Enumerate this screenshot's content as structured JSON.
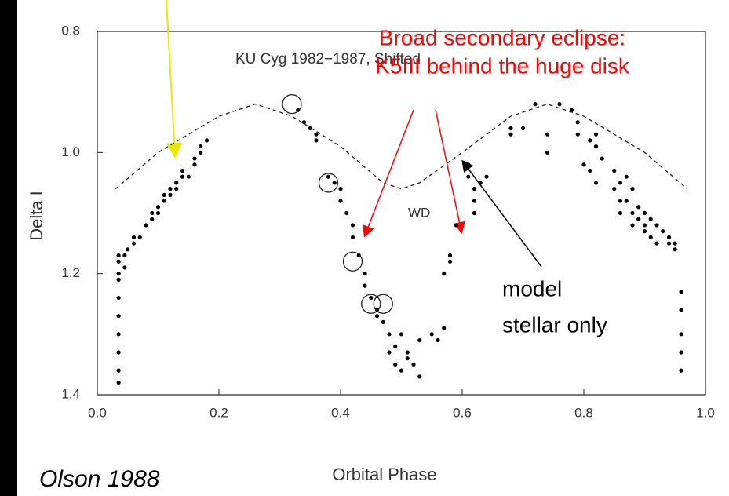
{
  "chart_data": {
    "type": "scatter",
    "title": "KU Cyg 1982−1987, Shifted",
    "x_label": "Orbital Phase",
    "y_label": "Delta  I",
    "source": "Olson 1988",
    "xlim": [
      0,
      1
    ],
    "ylim": [
      1.4,
      0.8
    ],
    "xticks": [
      {
        "value": 0,
        "label": "0.0"
      },
      0.2,
      0.4,
      0.6,
      0.8,
      {
        "value": 1,
        "label": "1.0"
      }
    ],
    "yticks": [
      0.8,
      {
        "value": 1,
        "label": "1.0"
      },
      1.2,
      1.4
    ],
    "color": "#000000",
    "points": {
      "x": [
        0.035,
        0.035,
        0.035,
        0.035,
        0.035,
        0.035,
        0.035,
        0.035,
        0.035,
        0.035,
        0.045,
        0.045,
        0.05,
        0.06,
        0.06,
        0.07,
        0.08,
        0.09,
        0.09,
        0.1,
        0.1,
        0.11,
        0.11,
        0.12,
        0.12,
        0.13,
        0.13,
        0.14,
        0.14,
        0.15,
        0.16,
        0.16,
        0.17,
        0.17,
        0.18,
        0.33,
        0.34,
        0.35,
        0.36,
        0.36,
        0.38,
        0.39,
        0.4,
        0.4,
        0.41,
        0.42,
        0.42,
        0.43,
        0.44,
        0.44,
        0.45,
        0.46,
        0.46,
        0.47,
        0.48,
        0.48,
        0.49,
        0.49,
        0.5,
        0.5,
        0.51,
        0.51,
        0.52,
        0.53,
        0.53,
        0.55,
        0.56,
        0.57,
        0.57,
        0.58,
        0.58,
        0.59,
        0.61,
        0.61,
        0.62,
        0.62,
        0.62,
        0.63,
        0.64,
        0.68,
        0.68,
        0.7,
        0.72,
        0.74,
        0.74,
        0.76,
        0.78,
        0.79,
        0.79,
        0.8,
        0.81,
        0.81,
        0.82,
        0.82,
        0.82,
        0.83,
        0.85,
        0.85,
        0.86,
        0.86,
        0.86,
        0.87,
        0.87,
        0.88,
        0.88,
        0.88,
        0.89,
        0.89,
        0.9,
        0.9,
        0.9,
        0.91,
        0.91,
        0.92,
        0.92,
        0.93,
        0.94,
        0.94,
        0.95,
        0.95,
        0.96,
        0.96,
        0.96,
        0.96,
        0.96
      ],
      "y": [
        1.38,
        1.36,
        1.33,
        1.3,
        1.27,
        1.24,
        1.21,
        1.2,
        1.18,
        1.17,
        1.19,
        1.17,
        1.16,
        1.15,
        1.14,
        1.14,
        1.12,
        1.1,
        1.11,
        1.09,
        1.1,
        1.08,
        1.07,
        1.06,
        1.07,
        1.05,
        1.06,
        1.04,
        1.03,
        1.04,
        1.02,
        1.01,
        1.0,
        0.99,
        0.98,
        0.93,
        0.95,
        0.96,
        0.97,
        0.98,
        1.04,
        1.05,
        1.06,
        1.08,
        1.1,
        1.12,
        1.14,
        1.17,
        1.2,
        1.22,
        1.24,
        1.26,
        1.27,
        1.28,
        1.3,
        1.33,
        1.35,
        1.32,
        1.36,
        1.3,
        1.34,
        1.33,
        1.35,
        1.37,
        1.31,
        1.3,
        1.31,
        1.29,
        1.2,
        1.17,
        1.18,
        1.12,
        1.02,
        1.04,
        1.06,
        1.08,
        1.1,
        1.05,
        1.04,
        0.97,
        0.96,
        0.96,
        0.92,
        0.97,
        1.0,
        0.92,
        0.93,
        0.95,
        0.97,
        1.02,
        0.98,
        1.03,
        0.99,
        0.97,
        1.05,
        1.01,
        1.03,
        1.06,
        1.05,
        1.08,
        1.1,
        1.04,
        1.08,
        1.06,
        1.1,
        1.12,
        1.09,
        1.11,
        1.1,
        1.12,
        1.13,
        1.11,
        1.14,
        1.12,
        1.15,
        1.13,
        1.14,
        1.15,
        1.15,
        1.16,
        1.23,
        1.26,
        1.3,
        1.33,
        1.36
      ]
    },
    "circles": {
      "x": [
        0.32,
        0.38,
        0.42,
        0.45,
        0.47
      ],
      "y": [
        0.92,
        1.05,
        1.18,
        1.25,
        1.25
      ]
    },
    "model": {
      "x": [
        0.03,
        0.1,
        0.2,
        0.26,
        0.32,
        0.4,
        0.47,
        0.5,
        0.53,
        0.6,
        0.68,
        0.74,
        0.8,
        0.9,
        0.97
      ],
      "y": [
        1.06,
        1.0,
        0.94,
        0.92,
        0.94,
        0.99,
        1.05,
        1.06,
        1.05,
        1.0,
        0.94,
        0.92,
        0.94,
        1.0,
        1.06
      ]
    },
    "annotations": [
      "WD",
      "Broad secondary eclipse:",
      "K5III behind the huge disk",
      "model",
      "stellar only"
    ]
  }
}
